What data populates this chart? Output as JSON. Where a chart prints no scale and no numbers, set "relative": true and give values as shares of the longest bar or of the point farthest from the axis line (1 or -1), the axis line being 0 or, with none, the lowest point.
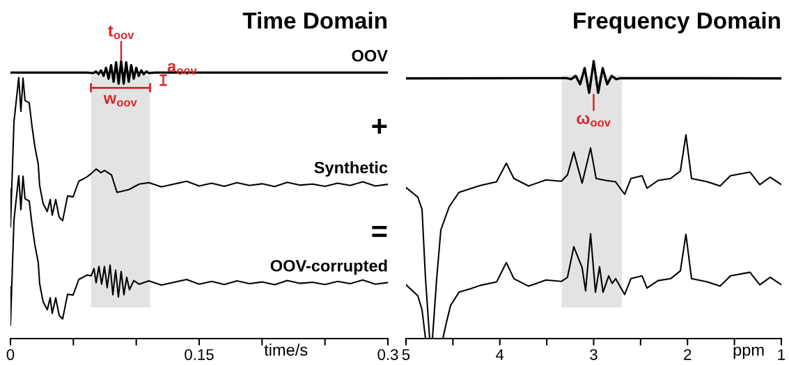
{
  "chart_data": [
    {
      "type": "line",
      "title": "Time Domain",
      "xlabel": "time/s",
      "relative": true,
      "xlim": [
        0,
        0.3
      ],
      "xticks": [
        0,
        {
          "value": 0.05,
          "label": null
        },
        {
          "value": 0.1,
          "label": null
        },
        0.15,
        {
          "value": 0.2,
          "label": null
        },
        {
          "value": 0.25,
          "label": null
        },
        0.3
      ],
      "grid": false,
      "legend": false,
      "marker": "none",
      "line_style": "solid",
      "bands": [
        {
          "axis": "x",
          "from": 0.064,
          "to": 0.111,
          "label": "w$_{oov}$",
          "color": "#e3e3e3"
        }
      ],
      "annotations": [
        "+",
        "=",
        {
          "text": "t$_{oov}$",
          "x": 0.088,
          "y": 1.0
        },
        "a$_{oov}$"
      ],
      "series": [
        {
          "name": "OOV",
          "color": "#000000",
          "x": [
            0,
            0.06,
            0.066,
            0.068,
            0.07,
            0.072,
            0.074,
            0.076,
            0.078,
            0.08,
            0.082,
            0.084,
            0.086,
            0.088,
            0.09,
            0.092,
            0.094,
            0.096,
            0.098,
            0.1,
            0.102,
            0.104,
            0.106,
            0.108,
            0.11,
            0.115,
            0.3
          ],
          "values": [
            0.959,
            0.959,
            0.957,
            0.963,
            0.953,
            0.967,
            0.947,
            0.976,
            0.937,
            0.986,
            0.926,
            0.996,
            0.919,
            1.0,
            0.919,
            0.996,
            0.926,
            0.986,
            0.937,
            0.976,
            0.947,
            0.967,
            0.953,
            0.963,
            0.957,
            0.959,
            0.959
          ]
        },
        {
          "name": "Synthetic",
          "color": "#000000",
          "x": [
            0,
            0,
            0.0028,
            0.0066,
            0.0083,
            0.01,
            0.0116,
            0.0149,
            0.0172,
            0.0194,
            0.0221,
            0.0232,
            0.026,
            0.0293,
            0.0316,
            0.0332,
            0.036,
            0.0387,
            0.0415,
            0.0454,
            0.0498,
            0.0543,
            0.0609,
            0.0642,
            0.0681,
            0.072,
            0.0747,
            0.0803,
            0.0847,
            0.0941,
            0.1024,
            0.11,
            0.12,
            0.13,
            0.14,
            0.15,
            0.16,
            0.17,
            0.18,
            0.19,
            0.2,
            0.21,
            0.22,
            0.23,
            0.24,
            0.25,
            0.26,
            0.27,
            0.28,
            0.29,
            0.3
          ],
          "values": [
            0.539,
            0.402,
            0.781,
            0.941,
            0.819,
            0.939,
            0.858,
            0.85,
            0.763,
            0.692,
            0.628,
            0.552,
            0.486,
            0.458,
            0.501,
            0.445,
            0.501,
            0.438,
            0.425,
            0.514,
            0.511,
            0.567,
            0.583,
            0.595,
            0.611,
            0.598,
            0.606,
            0.59,
            0.527,
            0.537,
            0.557,
            0.562,
            0.547,
            0.557,
            0.567,
            0.55,
            0.56,
            0.549,
            0.562,
            0.552,
            0.558,
            0.548,
            0.563,
            0.553,
            0.557,
            0.549,
            0.56,
            0.552,
            0.565,
            0.55,
            0.556
          ]
        },
        {
          "name": "OOV-corrupted",
          "color": "#000000",
          "x": [
            0,
            0,
            0.0028,
            0.0066,
            0.0083,
            0.01,
            0.0116,
            0.0149,
            0.0172,
            0.0194,
            0.0221,
            0.0232,
            0.026,
            0.0293,
            0.0316,
            0.0332,
            0.036,
            0.0387,
            0.0415,
            0.0454,
            0.0498,
            0.0543,
            0.0609,
            0.0642,
            0.0664,
            0.0681,
            0.0703,
            0.0725,
            0.0747,
            0.0769,
            0.0792,
            0.0814,
            0.0836,
            0.0858,
            0.088,
            0.0902,
            0.0924,
            0.0946,
            0.098,
            0.1024,
            0.11,
            0.12,
            0.13,
            0.14,
            0.15,
            0.16,
            0.17,
            0.18,
            0.19,
            0.2,
            0.21,
            0.22,
            0.23,
            0.24,
            0.25,
            0.26,
            0.27,
            0.28,
            0.29,
            0.3
          ],
          "values": [
            0.186,
            0.048,
            0.427,
            0.587,
            0.465,
            0.585,
            0.504,
            0.496,
            0.409,
            0.338,
            0.274,
            0.198,
            0.132,
            0.104,
            0.147,
            0.091,
            0.147,
            0.084,
            0.071,
            0.16,
            0.157,
            0.213,
            0.229,
            0.226,
            0.252,
            0.201,
            0.26,
            0.196,
            0.26,
            0.183,
            0.265,
            0.158,
            0.247,
            0.15,
            0.242,
            0.158,
            0.221,
            0.176,
            0.209,
            0.196,
            0.208,
            0.193,
            0.203,
            0.213,
            0.196,
            0.206,
            0.195,
            0.208,
            0.198,
            0.204,
            0.194,
            0.209,
            0.199,
            0.203,
            0.195,
            0.206,
            0.198,
            0.211,
            0.196,
            0.202
          ]
        }
      ]
    },
    {
      "type": "line",
      "title": "Frequency Domain",
      "xlabel": "ppm",
      "relative": true,
      "xlim": [
        5,
        1
      ],
      "xticks": [
        5,
        {
          "value": 4.5,
          "label": null
        },
        4,
        {
          "value": 3.5,
          "label": null
        },
        3,
        {
          "value": 2.5,
          "label": null
        },
        2,
        {
          "value": 1.5,
          "label": null
        },
        1
      ],
      "grid": false,
      "legend": false,
      "marker": "none",
      "line_style": "solid",
      "bands": [
        {
          "axis": "x",
          "from": 3.34,
          "to": 2.7,
          "color": "#e3e3e3"
        }
      ],
      "annotations": [
        {
          "text": "ω$_{oov}$",
          "x": 3.0,
          "y": 0.886
        }
      ],
      "series": [
        {
          "color": "#000000",
          "x": [
            5.0,
            3.288,
            3.24,
            3.192,
            3.144,
            3.096,
            3.048,
            3.0,
            2.952,
            2.904,
            2.856,
            2.808,
            2.76,
            2.712,
            1.0
          ],
          "values": [
            0.938,
            0.939,
            0.935,
            0.947,
            0.917,
            0.975,
            0.886,
            1.0,
            0.886,
            0.975,
            0.917,
            0.947,
            0.935,
            0.939,
            0.938
          ]
        },
        {
          "color": "#000000",
          "x": [
            5.0,
            4.874,
            4.829,
            4.792,
            4.748,
            4.718,
            4.673,
            4.629,
            4.54,
            4.436,
            4.317,
            4.206,
            4.035,
            3.931,
            3.85,
            3.694,
            3.508,
            3.345,
            3.279,
            3.212,
            3.123,
            3.033,
            2.974,
            2.87,
            2.766,
            2.67,
            2.603,
            2.484,
            2.432,
            2.314,
            2.18,
            2.076,
            2.017,
            1.957,
            1.787,
            1.653,
            1.542,
            1.334,
            1.23,
            1.119,
            1.0
          ],
          "values": [
            0.545,
            0.51,
            0.465,
            0.216,
            0,
            0,
            0.216,
            0.391,
            0.475,
            0.527,
            0.54,
            0.552,
            0.565,
            0.632,
            0.577,
            0.55,
            0.572,
            0.567,
            0.59,
            0.672,
            0.56,
            0.687,
            0.577,
            0.57,
            0.565,
            0.52,
            0.577,
            0.587,
            0.542,
            0.57,
            0.577,
            0.604,
            0.734,
            0.577,
            0.565,
            0.55,
            0.587,
            0.6,
            0.555,
            0.582,
            0.555
          ]
        },
        {
          "color": "#000000",
          "x": [
            5.0,
            4.874,
            4.829,
            4.792,
            4.607,
            4.57,
            4.525,
            4.436,
            4.317,
            4.206,
            4.035,
            3.931,
            3.85,
            3.694,
            3.508,
            3.345,
            3.279,
            3.212,
            3.123,
            3.086,
            3.033,
            2.981,
            2.937,
            2.9,
            2.84,
            2.803,
            2.766,
            2.67,
            2.603,
            2.484,
            2.432,
            2.314,
            2.18,
            2.076,
            2.017,
            1.957,
            1.787,
            1.653,
            1.542,
            1.334,
            1.23,
            1.119,
            1.0
          ],
          "values": [
            0.194,
            0.154,
            0.104,
            0,
            0,
            0.057,
            0.119,
            0.167,
            0.179,
            0.192,
            0.204,
            0.274,
            0.216,
            0.189,
            0.211,
            0.206,
            0.221,
            0.331,
            0.256,
            0.172,
            0.378,
            0.167,
            0.259,
            0.167,
            0.226,
            0.199,
            0.216,
            0.159,
            0.216,
            0.226,
            0.182,
            0.209,
            0.216,
            0.244,
            0.376,
            0.216,
            0.204,
            0.189,
            0.226,
            0.239,
            0.194,
            0.221,
            0.194
          ]
        }
      ]
    }
  ]
}
